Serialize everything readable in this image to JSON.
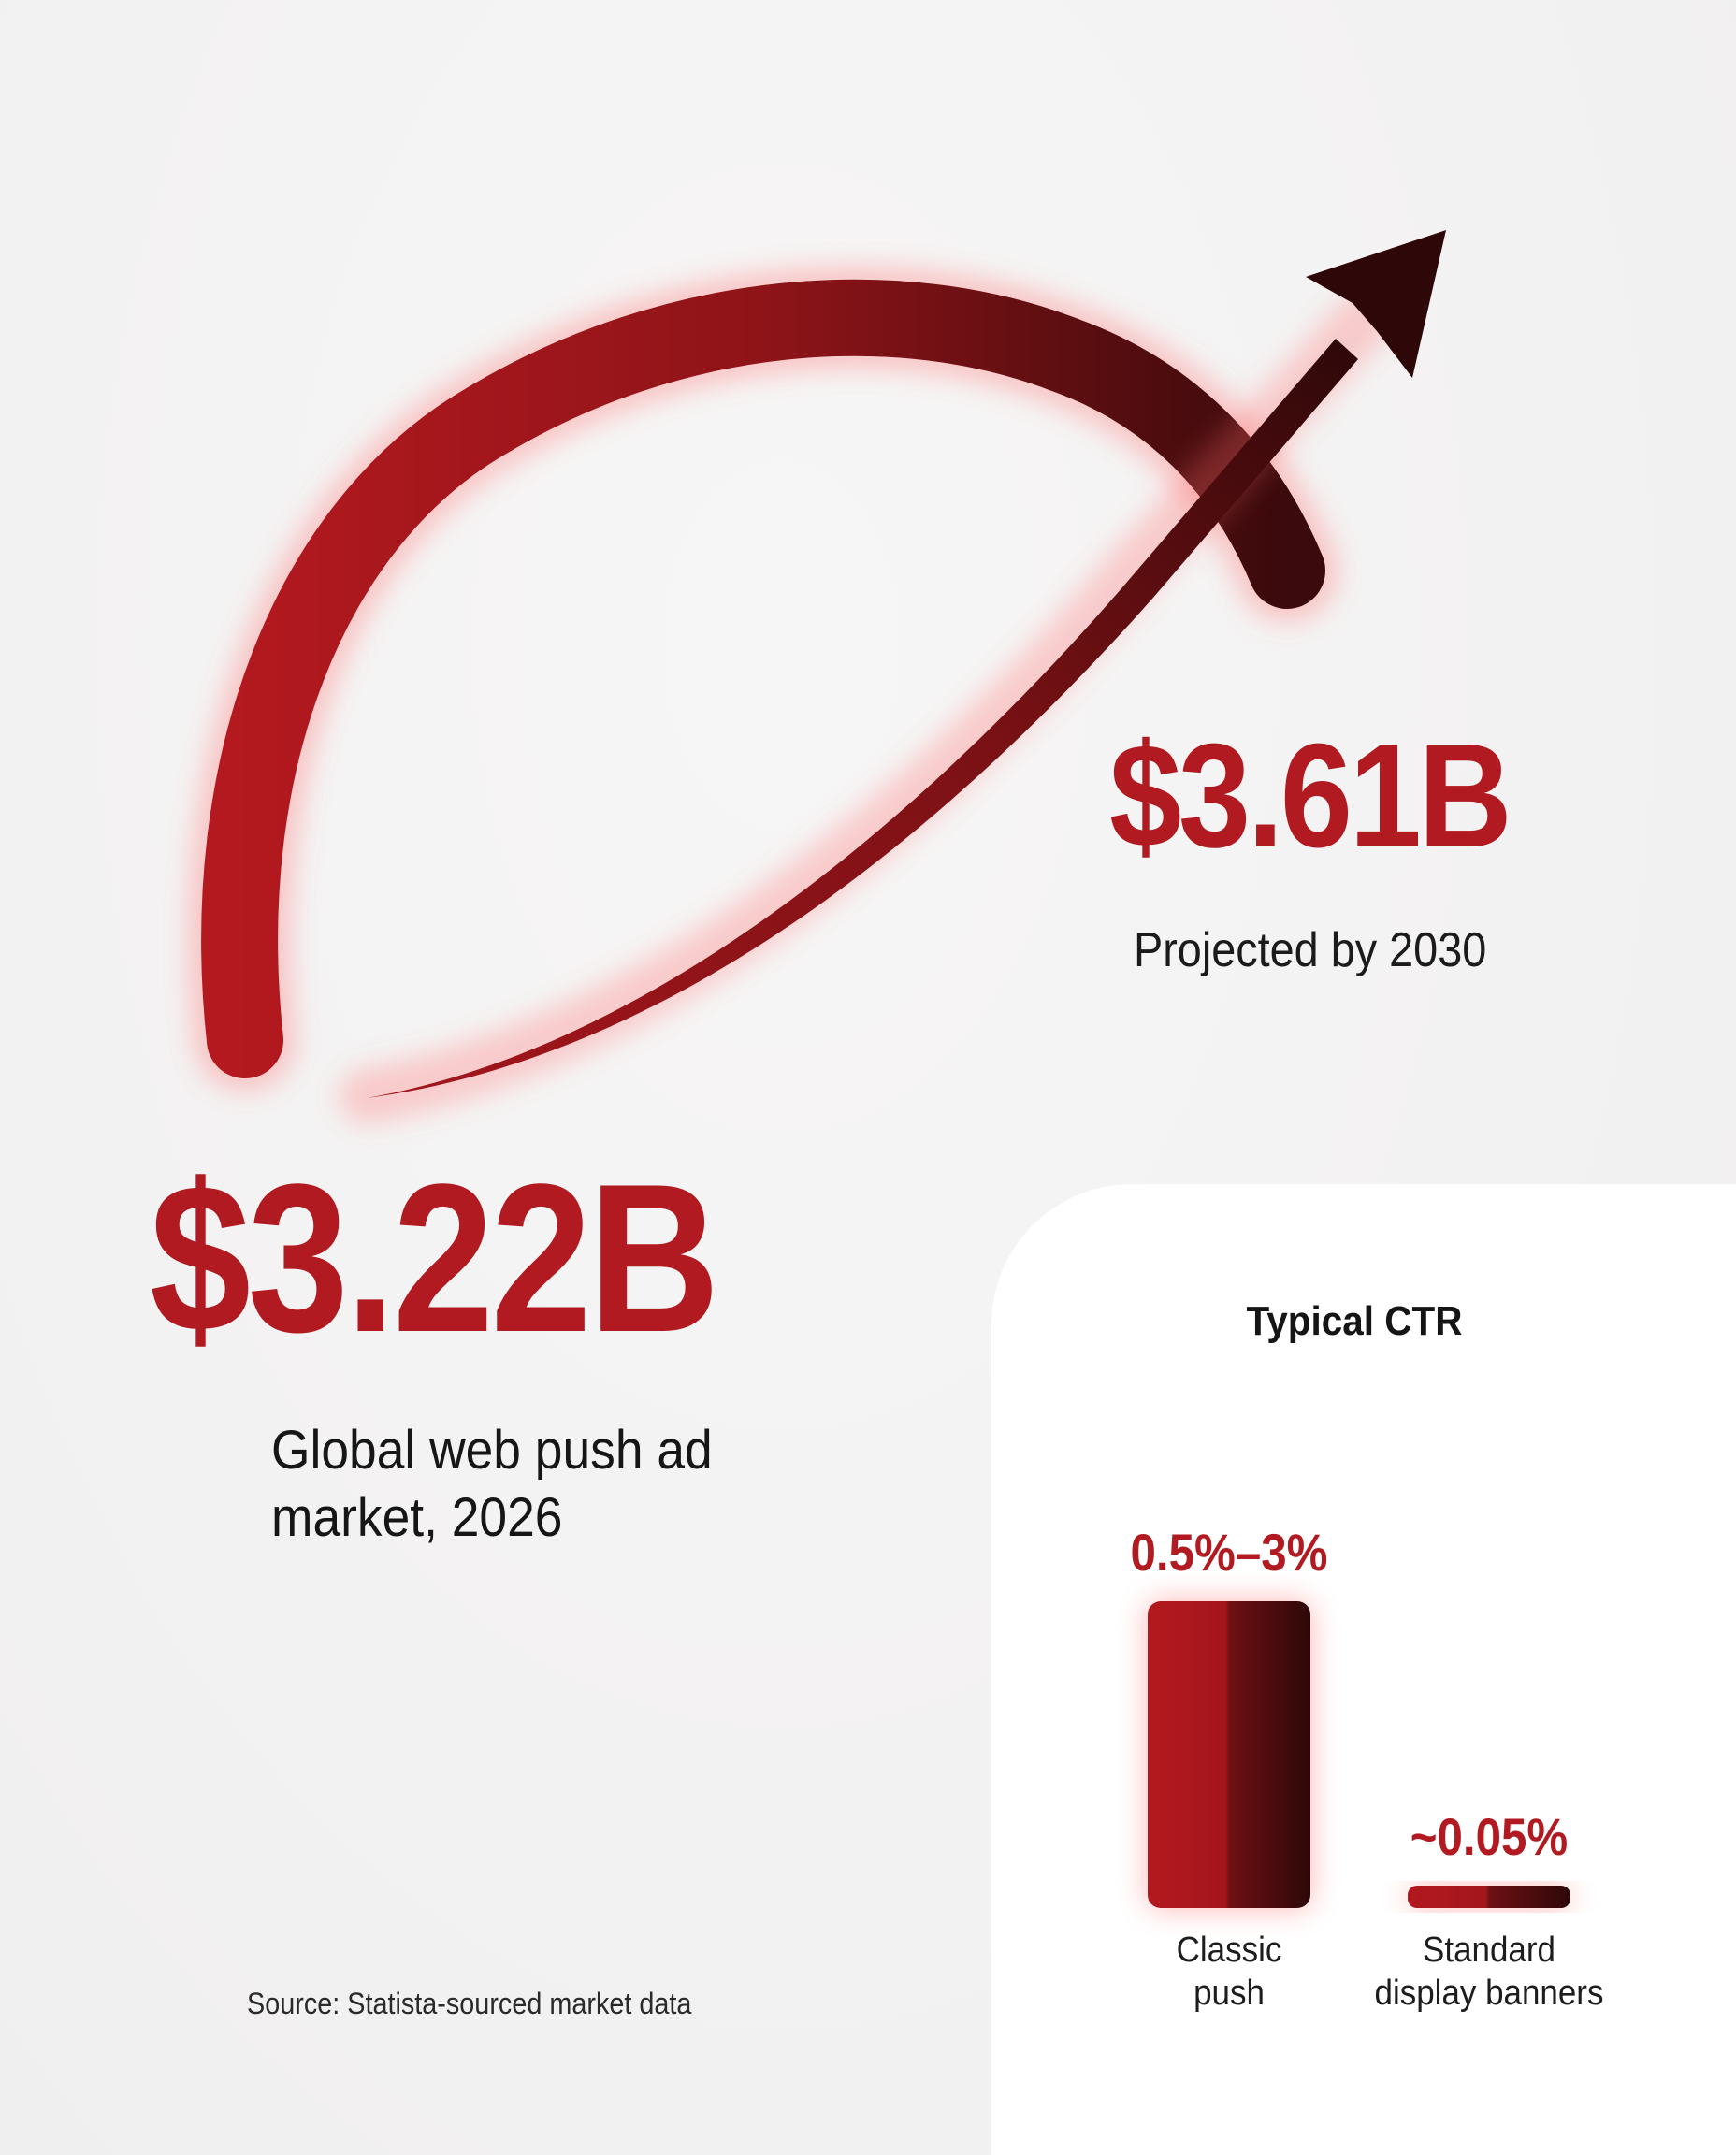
{
  "headline_current": {
    "value": "$3.22B",
    "label": "Global web push ad market, 2026"
  },
  "headline_projected": {
    "value": "$3.61B",
    "label": "Projected by 2030"
  },
  "source": "Source: Statista-sourced market data",
  "colors": {
    "accent_red": "#b01a20",
    "dark_red": "#3d0a0c",
    "panel_bg": "#ffffff",
    "page_bg": "#f4f3f3"
  },
  "chart_data": {
    "type": "bar",
    "title": "Typical CTR",
    "categories": [
      "Classic push",
      "Standard display banners"
    ],
    "value_labels": [
      "0.5%–3%",
      "~0.05%"
    ],
    "values": [
      3,
      0.05
    ],
    "value_ranges": [
      [
        0.5,
        3
      ],
      [
        0.05,
        0.05
      ]
    ],
    "ylim": [
      0,
      3
    ],
    "grid": false,
    "legend": "none"
  }
}
